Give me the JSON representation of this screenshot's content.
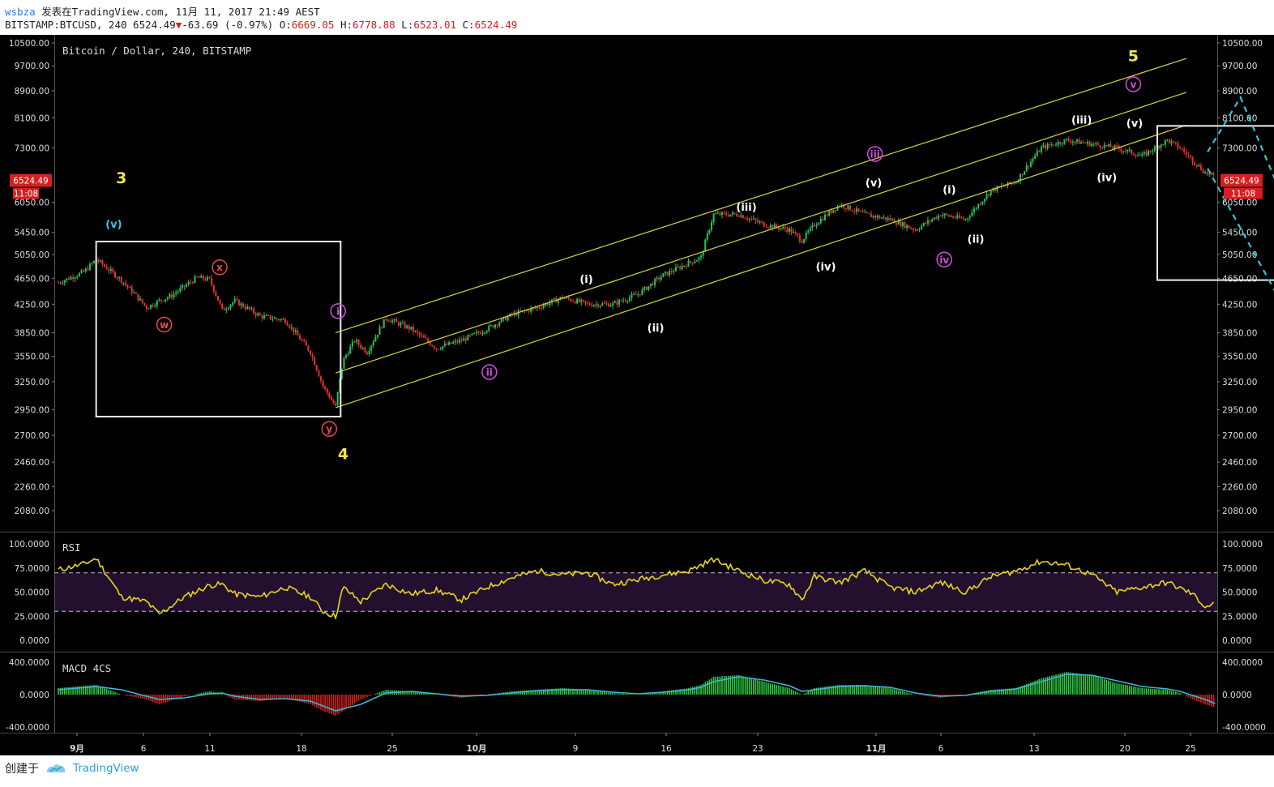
{
  "header": {
    "user": "wsbza",
    "published": "发表在TradingView.com, 11月 11, 2017 21:49 AEST",
    "symbol": "BITSTAMP:BTCUSD, 240",
    "last": "6524.49",
    "change": "-63.69 (-0.97%)",
    "o_label": "O:",
    "o": "6669.05",
    "h_label": "H:",
    "h": "6778.88",
    "l_label": "L:",
    "l": "6523.01",
    "c_label": "C:",
    "c": "6524.49"
  },
  "footer": {
    "created_with": "创建于",
    "brand": "TradingView"
  },
  "colors": {
    "background": "#000000",
    "up": "#22c55e",
    "down": "#e63232",
    "channel": "#d9d442",
    "rsi": "#e8d51b",
    "macd_signal": "#3fb6d6",
    "projection": "#2ec6d6",
    "price_badge": "#d42020"
  },
  "chart_data": [
    {
      "type": "candlestick",
      "title": "Bitcoin / Dollar, 240, BITSTAMP",
      "y_ticks": [
        "10500.00",
        "9700.00",
        "8900.00",
        "8100.00",
        "7300.00",
        "6050.00",
        "5450.00",
        "5050.00",
        "4650.00",
        "4250.00",
        "3850.00",
        "3550.00",
        "3250.00",
        "2950.00",
        "2700.00",
        "2460.00",
        "2260.00",
        "2080.00"
      ],
      "x_ticks": [
        "9月",
        "6",
        "11",
        "18",
        "25",
        "10月",
        "9",
        "16",
        "23",
        "11月",
        "6",
        "13",
        "20",
        "25"
      ],
      "last_price_label": "6524.49",
      "countdown_label": "11:08",
      "path": [
        [
          0,
          4580
        ],
        [
          2,
          4750
        ],
        [
          3,
          4960
        ],
        [
          5,
          4620
        ],
        [
          7,
          4200
        ],
        [
          8,
          4300
        ],
        [
          9,
          4380
        ],
        [
          11,
          4660
        ],
        [
          12,
          4630
        ],
        [
          13,
          4160
        ],
        [
          14,
          4300
        ],
        [
          16,
          4080
        ],
        [
          18,
          4020
        ],
        [
          20,
          3600
        ],
        [
          21,
          3200
        ],
        [
          22,
          2980
        ],
        [
          22.6,
          3500
        ],
        [
          23.5,
          3750
        ],
        [
          24.5,
          3600
        ],
        [
          26,
          4050
        ],
        [
          28,
          3900
        ],
        [
          30,
          3650
        ],
        [
          32,
          3750
        ],
        [
          34,
          3900
        ],
        [
          36,
          4100
        ],
        [
          38,
          4200
        ],
        [
          40,
          4350
        ],
        [
          42,
          4250
        ],
        [
          44,
          4250
        ],
        [
          46,
          4400
        ],
        [
          48,
          4700
        ],
        [
          50,
          4900
        ],
        [
          51,
          5000
        ],
        [
          52,
          5800
        ],
        [
          54,
          5800
        ],
        [
          56,
          5600
        ],
        [
          58,
          5500
        ],
        [
          59,
          5300
        ],
        [
          60,
          5600
        ],
        [
          62,
          6000
        ],
        [
          64,
          5800
        ],
        [
          66,
          5700
        ],
        [
          68,
          5500
        ],
        [
          70,
          5800
        ],
        [
          72,
          5700
        ],
        [
          74,
          6300
        ],
        [
          76,
          6500
        ],
        [
          78,
          7300
        ],
        [
          80,
          7500
        ],
        [
          82,
          7400
        ],
        [
          84,
          7300
        ],
        [
          86,
          7100
        ],
        [
          88,
          7500
        ],
        [
          89,
          7300
        ],
        [
          90,
          7000
        ],
        [
          91,
          6700
        ],
        [
          91.8,
          6600
        ]
      ],
      "channel_lines": [
        {
          "name": "upper",
          "x": [
            22,
            89.5
          ],
          "y": [
            3850,
            9950
          ]
        },
        {
          "name": "middle",
          "x": [
            22,
            89.5
          ],
          "y": [
            3350,
            8850
          ]
        },
        {
          "name": "lower",
          "x": [
            22,
            89.5
          ],
          "y": [
            2970,
            7900
          ]
        }
      ],
      "boxes": [
        {
          "x": [
            3,
            22.4
          ],
          "y": [
            2880,
            5280
          ]
        },
        {
          "x": [
            87.2,
            109.2
          ],
          "y": [
            4620,
            7880
          ]
        }
      ],
      "projections": [
        {
          "x": [
            91.2,
            93.8,
            101.8
          ],
          "y": [
            7200,
            8700,
            3800
          ]
        },
        {
          "x": [
            91.2,
            99.2
          ],
          "y": [
            6800,
            3600
          ]
        }
      ],
      "wave_labels": [
        {
          "text": "3",
          "x": 5,
          "y": 6550,
          "style": "plain-yellow"
        },
        {
          "text": "(v)",
          "x": 4.4,
          "y": 5620,
          "style": "plain-cyan"
        },
        {
          "text": "w",
          "x": 8.4,
          "y": 3960,
          "style": "circle-red"
        },
        {
          "text": "x",
          "x": 12.8,
          "y": 4830,
          "style": "circle-red"
        },
        {
          "text": "y",
          "x": 21.5,
          "y": 2760,
          "style": "circle-red"
        },
        {
          "text": "4",
          "x": 22.6,
          "y": 2520,
          "style": "plain-yellow"
        },
        {
          "text": "i",
          "x": 22.2,
          "y": 4150,
          "style": "circle-magenta"
        },
        {
          "text": "ii",
          "x": 34.2,
          "y": 3360,
          "style": "circle-magenta"
        },
        {
          "text": "(i)",
          "x": 41.9,
          "y": 4640,
          "style": "plain-white"
        },
        {
          "text": "(ii)",
          "x": 47.4,
          "y": 3920,
          "style": "plain-white"
        },
        {
          "text": "(iii)",
          "x": 54.6,
          "y": 5960,
          "style": "plain-white"
        },
        {
          "text": "(iv)",
          "x": 60.9,
          "y": 4850,
          "style": "plain-white"
        },
        {
          "text": "iii",
          "x": 64.8,
          "y": 7150,
          "style": "circle-magenta"
        },
        {
          "text": "(v)",
          "x": 64.7,
          "y": 6480,
          "style": "plain-white"
        },
        {
          "text": "iv",
          "x": 70.3,
          "y": 4960,
          "style": "circle-magenta"
        },
        {
          "text": "(i)",
          "x": 70.7,
          "y": 6330,
          "style": "plain-white"
        },
        {
          "text": "(ii)",
          "x": 72.8,
          "y": 5330,
          "style": "plain-white"
        },
        {
          "text": "(iii)",
          "x": 81.2,
          "y": 8050,
          "style": "plain-white"
        },
        {
          "text": "(iv)",
          "x": 83.2,
          "y": 6600,
          "style": "plain-white"
        },
        {
          "text": "(v)",
          "x": 85.4,
          "y": 7970,
          "style": "plain-white"
        },
        {
          "text": "v",
          "x": 85.3,
          "y": 9100,
          "style": "circle-magenta"
        },
        {
          "text": "5",
          "x": 85.3,
          "y": 10000,
          "style": "plain-yellow"
        }
      ]
    },
    {
      "type": "line",
      "title": "RSI",
      "y_ticks": [
        "100.0000",
        "75.0000",
        "50.0000",
        "25.0000",
        "0.0000"
      ],
      "ylim": [
        0,
        100
      ],
      "bands": [
        30,
        70
      ],
      "values": [
        [
          0,
          73
        ],
        [
          2,
          79
        ],
        [
          3,
          85
        ],
        [
          5,
          45
        ],
        [
          7,
          40
        ],
        [
          8,
          27
        ],
        [
          10,
          45
        ],
        [
          12,
          57
        ],
        [
          13,
          58
        ],
        [
          14,
          48
        ],
        [
          16,
          45
        ],
        [
          18,
          55
        ],
        [
          20,
          45
        ],
        [
          21,
          30
        ],
        [
          22,
          25
        ],
        [
          22.6,
          55
        ],
        [
          24,
          40
        ],
        [
          26,
          58
        ],
        [
          28,
          48
        ],
        [
          30,
          52
        ],
        [
          32,
          42
        ],
        [
          34,
          55
        ],
        [
          36,
          65
        ],
        [
          38,
          72
        ],
        [
          40,
          68
        ],
        [
          42,
          70
        ],
        [
          44,
          58
        ],
        [
          46,
          63
        ],
        [
          48,
          68
        ],
        [
          50,
          72
        ],
        [
          51,
          78
        ],
        [
          52,
          84
        ],
        [
          54,
          72
        ],
        [
          56,
          62
        ],
        [
          58,
          58
        ],
        [
          59,
          42
        ],
        [
          60,
          66
        ],
        [
          62,
          60
        ],
        [
          64,
          72
        ],
        [
          66,
          55
        ],
        [
          68,
          50
        ],
        [
          70,
          60
        ],
        [
          72,
          50
        ],
        [
          74,
          66
        ],
        [
          76,
          72
        ],
        [
          78,
          82
        ],
        [
          80,
          78
        ],
        [
          82,
          68
        ],
        [
          84,
          50
        ],
        [
          86,
          55
        ],
        [
          88,
          60
        ],
        [
          90,
          48
        ],
        [
          91,
          35
        ],
        [
          91.8,
          38
        ]
      ]
    },
    {
      "type": "bar",
      "title": "MACD 4CS",
      "y_ticks": [
        "400.0000",
        "0.0000",
        "-400.0000"
      ],
      "ylim": [
        -600,
        600
      ],
      "histogram": [
        [
          0,
          80
        ],
        [
          3,
          120
        ],
        [
          5,
          0
        ],
        [
          7,
          -60
        ],
        [
          8,
          -120
        ],
        [
          10,
          -20
        ],
        [
          12,
          40
        ],
        [
          13,
          10
        ],
        [
          14,
          -60
        ],
        [
          16,
          -80
        ],
        [
          18,
          -40
        ],
        [
          20,
          -120
        ],
        [
          21,
          -200
        ],
        [
          22,
          -260
        ],
        [
          24,
          -60
        ],
        [
          26,
          60
        ],
        [
          28,
          40
        ],
        [
          30,
          0
        ],
        [
          32,
          -40
        ],
        [
          34,
          0
        ],
        [
          36,
          40
        ],
        [
          38,
          60
        ],
        [
          40,
          80
        ],
        [
          42,
          60
        ],
        [
          44,
          20
        ],
        [
          46,
          0
        ],
        [
          48,
          40
        ],
        [
          50,
          80
        ],
        [
          51,
          120
        ],
        [
          52,
          220
        ],
        [
          54,
          240
        ],
        [
          56,
          160
        ],
        [
          58,
          80
        ],
        [
          59,
          0
        ],
        [
          60,
          80
        ],
        [
          62,
          120
        ],
        [
          64,
          120
        ],
        [
          66,
          80
        ],
        [
          68,
          0
        ],
        [
          70,
          -40
        ],
        [
          72,
          0
        ],
        [
          74,
          60
        ],
        [
          76,
          80
        ],
        [
          78,
          200
        ],
        [
          80,
          280
        ],
        [
          82,
          240
        ],
        [
          84,
          140
        ],
        [
          86,
          80
        ],
        [
          88,
          60
        ],
        [
          89,
          20
        ],
        [
          90,
          -60
        ],
        [
          91,
          -120
        ],
        [
          91.8,
          -160
        ]
      ],
      "signal": [
        [
          0,
          60
        ],
        [
          3,
          100
        ],
        [
          5,
          60
        ],
        [
          7,
          -20
        ],
        [
          8,
          -60
        ],
        [
          10,
          -40
        ],
        [
          12,
          10
        ],
        [
          13,
          20
        ],
        [
          14,
          -20
        ],
        [
          16,
          -60
        ],
        [
          18,
          -50
        ],
        [
          20,
          -80
        ],
        [
          21,
          -140
        ],
        [
          22,
          -200
        ],
        [
          24,
          -120
        ],
        [
          26,
          20
        ],
        [
          28,
          40
        ],
        [
          30,
          10
        ],
        [
          32,
          -20
        ],
        [
          34,
          -10
        ],
        [
          36,
          20
        ],
        [
          38,
          50
        ],
        [
          40,
          60
        ],
        [
          42,
          60
        ],
        [
          44,
          30
        ],
        [
          46,
          10
        ],
        [
          48,
          30
        ],
        [
          50,
          60
        ],
        [
          51,
          90
        ],
        [
          52,
          160
        ],
        [
          54,
          220
        ],
        [
          56,
          180
        ],
        [
          58,
          110
        ],
        [
          59,
          40
        ],
        [
          60,
          60
        ],
        [
          62,
          100
        ],
        [
          64,
          110
        ],
        [
          66,
          90
        ],
        [
          68,
          20
        ],
        [
          70,
          -20
        ],
        [
          72,
          -10
        ],
        [
          74,
          40
        ],
        [
          76,
          70
        ],
        [
          78,
          160
        ],
        [
          80,
          250
        ],
        [
          82,
          240
        ],
        [
          84,
          170
        ],
        [
          86,
          100
        ],
        [
          88,
          70
        ],
        [
          89,
          40
        ],
        [
          90,
          -10
        ],
        [
          91,
          -60
        ],
        [
          91.8,
          -110
        ]
      ]
    }
  ]
}
